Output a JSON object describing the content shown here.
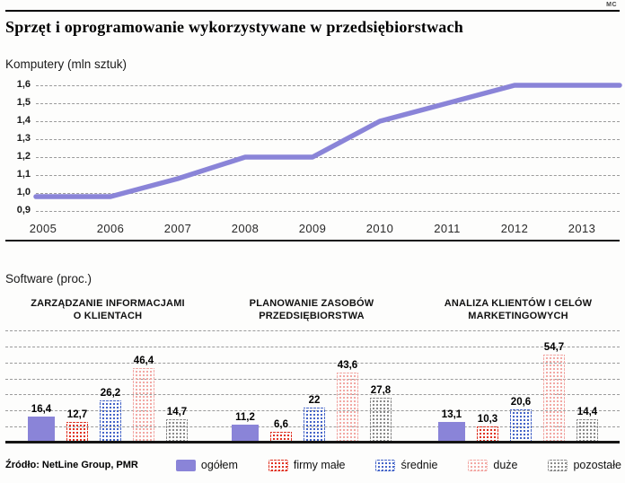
{
  "page": {
    "corner_mark": "MC",
    "title": "Sprzęt i oprogramowanie wykorzystywane w przedsiębiorstwach",
    "source": "Źródło: NetLine Group, PMR"
  },
  "legend": {
    "items": [
      {
        "key": "ogolem",
        "label": "ogółem",
        "style": "solid",
        "color": "#8a84d8"
      },
      {
        "key": "firmy-male",
        "label": "firmy małe",
        "style": "dots",
        "color": "#e03222"
      },
      {
        "key": "srednie",
        "label": "średnie",
        "style": "dots",
        "color": "#4464c8"
      },
      {
        "key": "duze",
        "label": "duże",
        "style": "dots",
        "color": "#f2a8a4"
      },
      {
        "key": "pozostale",
        "label": "pozostałe",
        "style": "dots",
        "color": "#8a8a8a"
      }
    ]
  },
  "chart_data": [
    {
      "type": "line",
      "title": "Komputery (mln sztuk)",
      "x": [
        "2005",
        "2006",
        "2007",
        "2008",
        "2009",
        "2010",
        "2011",
        "2012",
        "2013"
      ],
      "values": [
        0.98,
        0.98,
        1.08,
        1.2,
        1.2,
        1.4,
        1.5,
        1.6,
        1.6
      ],
      "ylim": [
        0.9,
        1.6
      ],
      "yticks": [
        "1,6",
        "1,5",
        "1,4",
        "1,3",
        "1,2",
        "1,1",
        "1,0",
        "0,9"
      ],
      "line_color": "#8a84d8",
      "grid": "dashed"
    },
    {
      "type": "bar",
      "title": "Software (proc.)",
      "series": [
        "ogółem",
        "firmy małe",
        "średnie",
        "duże",
        "pozostałe"
      ],
      "ylim": [
        0,
        70
      ],
      "grid": "dashed",
      "legend_position": "bottom",
      "groups": [
        {
          "title_lines": [
            "ZARZĄDZANIE INFORMACJAMI",
            "O KLIENTACH"
          ],
          "values": [
            16.4,
            12.7,
            26.2,
            46.4,
            14.7
          ],
          "labels": [
            "16,4",
            "12,7",
            "26,2",
            "46,4",
            "14,7"
          ]
        },
        {
          "title_lines": [
            "PLANOWANIE ZASOBÓW",
            "PRZEDSIĘBIORSTWA"
          ],
          "values": [
            11.2,
            6.6,
            22,
            43.6,
            27.8
          ],
          "labels": [
            "11,2",
            "6,6",
            "22",
            "43,6",
            "27,8"
          ]
        },
        {
          "title_lines": [
            "ANALIZA KLIENTÓW I CELÓW",
            "MARKETINGOWYCH"
          ],
          "values": [
            13.1,
            10.3,
            20.6,
            54.7,
            14.4
          ],
          "labels": [
            "13,1",
            "10,3",
            "20,6",
            "54,7",
            "14,4"
          ]
        }
      ]
    }
  ]
}
